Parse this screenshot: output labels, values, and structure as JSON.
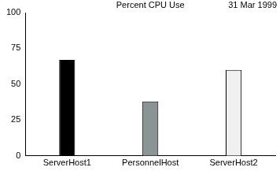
{
  "chart_data": {
    "type": "bar",
    "title": "Percent CPU Use",
    "subtitle": "31 Mar 1999",
    "categories": [
      "ServerHost1",
      "PersonnelHost",
      "ServerHost2"
    ],
    "values": [
      67,
      38,
      60
    ],
    "colors": [
      "#000000",
      "#8a9494",
      "#f0f0f0"
    ],
    "ylim": [
      0,
      100
    ],
    "yticks": [
      0,
      25,
      50,
      75,
      100
    ],
    "grid": false
  }
}
